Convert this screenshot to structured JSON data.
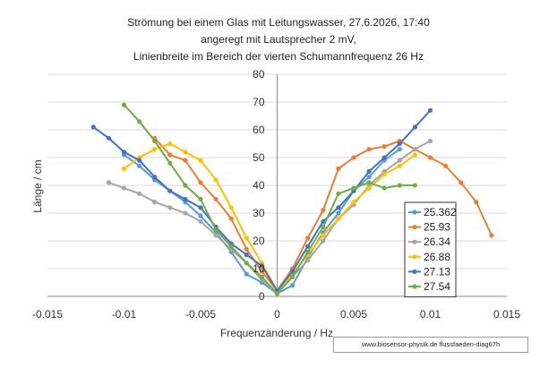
{
  "chart_data": {
    "type": "scatter",
    "title_lines": [
      "Strömung bei einem Glas mit  Leitungswasser, 27.6.2026, 17:40",
      "angeregt mit Lautsprecher 2 mV,",
      "Linienbreite im Bereich der vierten Schumannfrequenz 26 Hz"
    ],
    "xlabel": "Frequenzänderung / Hz",
    "ylabel": "Länge / cm",
    "xlim": [
      -0.015,
      0.015
    ],
    "ylim": [
      0,
      80
    ],
    "x_ticks": [
      -0.015,
      -0.01,
      -0.005,
      0,
      0.005,
      0.01,
      0.015
    ],
    "x_tick_labels": [
      "-0.015",
      "-0.01",
      "-0.005",
      "0",
      "0.005",
      "0.01",
      "0.015"
    ],
    "y_ticks": [
      0,
      10,
      20,
      30,
      40,
      50,
      60,
      70,
      80
    ],
    "y_tick_labels": [
      "0",
      "10",
      "20",
      "30",
      "40",
      "50",
      "60",
      "70",
      "80"
    ],
    "grid": "horizontal",
    "legend_position": "inside-right",
    "source_note": "www.biosensor-physik.de  flussfaeden-diag67h",
    "series": [
      {
        "name": "25.362",
        "color": "#5B9BD5",
        "x": [
          -0.01,
          -0.009,
          -0.008,
          -0.007,
          -0.006,
          -0.005,
          -0.004,
          -0.003,
          -0.002,
          -0.001,
          0,
          0.001,
          0.002,
          0.003,
          0.004,
          0.005,
          0.006,
          0.007,
          0.008
        ],
        "y": [
          51,
          47,
          42,
          38,
          34,
          29,
          23,
          16,
          8,
          5,
          1,
          4,
          14,
          23,
          30,
          38,
          43,
          49,
          53
        ]
      },
      {
        "name": "25.93",
        "color": "#ED7D31",
        "x": [
          -0.008,
          -0.007,
          -0.006,
          -0.005,
          -0.004,
          -0.003,
          -0.002,
          -0.001,
          0,
          0.001,
          0.002,
          0.003,
          0.004,
          0.005,
          0.006,
          0.007,
          0.008,
          0.009,
          0.01,
          0.011,
          0.012,
          0.013,
          0.014
        ],
        "y": [
          57,
          51,
          49,
          41,
          35,
          28,
          17,
          9,
          2,
          10,
          21,
          31,
          46,
          50,
          53,
          54,
          56,
          53,
          50,
          47,
          41,
          34,
          22
        ]
      },
      {
        "name": "26.34",
        "color": "#A5A5A5",
        "x": [
          -0.011,
          -0.01,
          -0.009,
          -0.008,
          -0.007,
          -0.006,
          -0.005,
          -0.004,
          -0.003,
          -0.002,
          -0.001,
          0,
          0.001,
          0.002,
          0.003,
          0.004,
          0.005,
          0.006,
          0.007,
          0.008,
          0.009,
          0.01
        ],
        "y": [
          41,
          39,
          37,
          34,
          32,
          30,
          27,
          22,
          17,
          12,
          6,
          1,
          7,
          13,
          20,
          28,
          33,
          40,
          45,
          49,
          53,
          56
        ]
      },
      {
        "name": "26.88",
        "color": "#FFC000",
        "x": [
          -0.01,
          -0.009,
          -0.008,
          -0.007,
          -0.006,
          -0.005,
          -0.004,
          -0.003,
          -0.002,
          -0.001,
          0,
          0.001,
          0.002,
          0.003,
          0.004,
          0.005,
          0.006,
          0.007,
          0.008,
          0.009
        ],
        "y": [
          46,
          50,
          53,
          55,
          52,
          49,
          42,
          32,
          21,
          12,
          2,
          8,
          15,
          22,
          28,
          34,
          39,
          44,
          47,
          51
        ]
      },
      {
        "name": "27.13",
        "color": "#4472C4",
        "x": [
          -0.012,
          -0.011,
          -0.01,
          -0.009,
          -0.008,
          -0.007,
          -0.006,
          -0.005,
          -0.004,
          -0.003,
          -0.002,
          -0.001,
          0,
          0.001,
          0.002,
          0.003,
          0.004,
          0.005,
          0.006,
          0.007,
          0.008,
          0.009,
          0.01
        ],
        "y": [
          61,
          57,
          52,
          49,
          43,
          38,
          35,
          32,
          25,
          19,
          15,
          11,
          2,
          9,
          18,
          27,
          32,
          38,
          45,
          50,
          55,
          61,
          67
        ]
      },
      {
        "name": "27.54",
        "color": "#70AD47",
        "x": [
          -0.01,
          -0.009,
          -0.008,
          -0.007,
          -0.006,
          -0.005,
          -0.004,
          -0.003,
          -0.002,
          -0.001,
          0,
          0.001,
          0.002,
          0.003,
          0.004,
          0.005,
          0.006,
          0.007,
          0.008,
          0.009
        ],
        "y": [
          69,
          63,
          56,
          48,
          40,
          35,
          24,
          18,
          12,
          7,
          1,
          7,
          16,
          25,
          37,
          39,
          41,
          39,
          40,
          40
        ]
      }
    ]
  }
}
